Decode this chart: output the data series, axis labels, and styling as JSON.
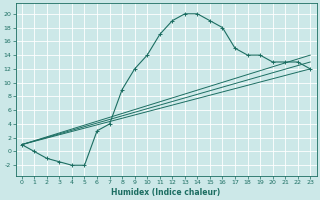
{
  "title": "",
  "xlabel": "Humidex (Indice chaleur)",
  "xlim": [
    -0.5,
    23.5
  ],
  "ylim": [
    -3.5,
    21.5
  ],
  "xticks": [
    0,
    1,
    2,
    3,
    4,
    5,
    6,
    7,
    8,
    9,
    10,
    11,
    12,
    13,
    14,
    15,
    16,
    17,
    18,
    19,
    20,
    21,
    22,
    23
  ],
  "yticks": [
    -2,
    0,
    2,
    4,
    6,
    8,
    10,
    12,
    14,
    16,
    18,
    20
  ],
  "bg_color": "#cce8e8",
  "grid_color": "#ffffff",
  "line_color": "#1c6e62",
  "curve_main": {
    "x": [
      0,
      1,
      2,
      3,
      4,
      5,
      6,
      7,
      8,
      9,
      10,
      11,
      12,
      13,
      14,
      15,
      16,
      17,
      18,
      19,
      20,
      21,
      22,
      23
    ],
    "y": [
      1,
      0,
      -1,
      -1.5,
      -2,
      -2,
      3,
      4,
      9,
      12,
      14,
      17,
      19,
      20,
      20,
      19,
      18,
      15,
      14,
      14,
      13,
      13,
      13,
      12
    ]
  },
  "line1": {
    "x": [
      0,
      23
    ],
    "y": [
      1,
      12
    ]
  },
  "line2": {
    "x": [
      0,
      23
    ],
    "y": [
      1,
      13
    ]
  },
  "line3": {
    "x": [
      0,
      23
    ],
    "y": [
      1,
      14
    ]
  }
}
